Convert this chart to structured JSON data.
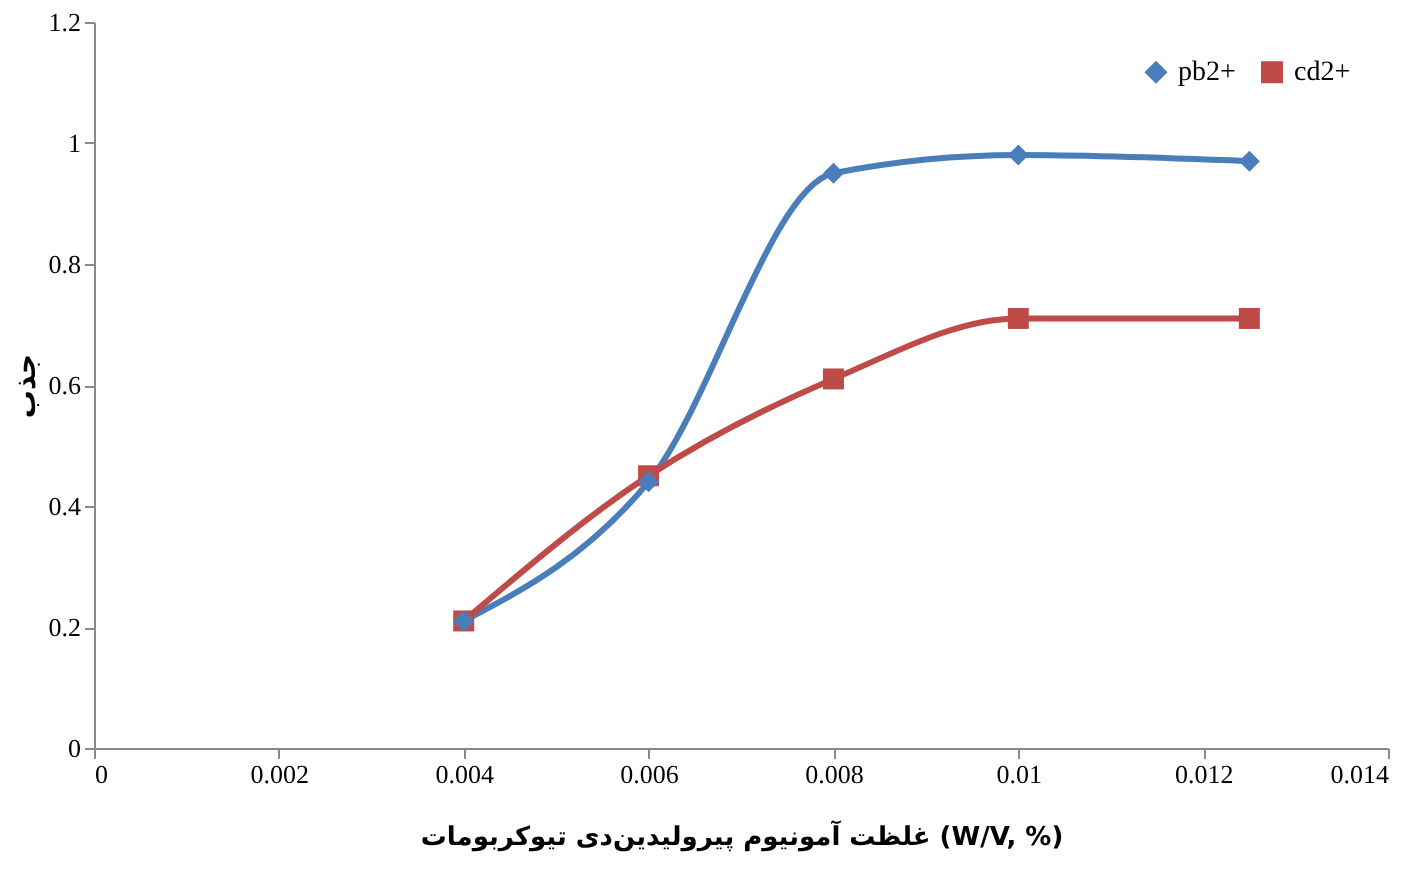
{
  "chart_data": {
    "type": "line",
    "xlabel": "غلظت آمونیوم پیرولیدین‌دی تیوکربومات (W/V, %)",
    "ylabel": "جذب",
    "x": [
      0.004,
      0.006,
      0.008,
      0.01,
      0.0125
    ],
    "series": [
      {
        "name": "pb2+",
        "color": "#4a7ebb",
        "marker": "diamond",
        "values": [
          0.21,
          0.44,
          0.95,
          0.98,
          0.97
        ]
      },
      {
        "name": "cd2+",
        "color": "#be4b48",
        "marker": "square",
        "values": [
          0.21,
          0.45,
          0.61,
          0.71,
          0.71
        ]
      }
    ],
    "xlim": [
      0,
      0.014
    ],
    "xticks": [
      0,
      0.002,
      0.004,
      0.006,
      0.008,
      0.01,
      0.012,
      0.014
    ],
    "ylim": [
      0,
      1.2
    ],
    "yticks": [
      0,
      0.2,
      0.4,
      0.6,
      0.8,
      1,
      1.2
    ],
    "grid": false,
    "legend": "top right",
    "line_style": "solid"
  }
}
